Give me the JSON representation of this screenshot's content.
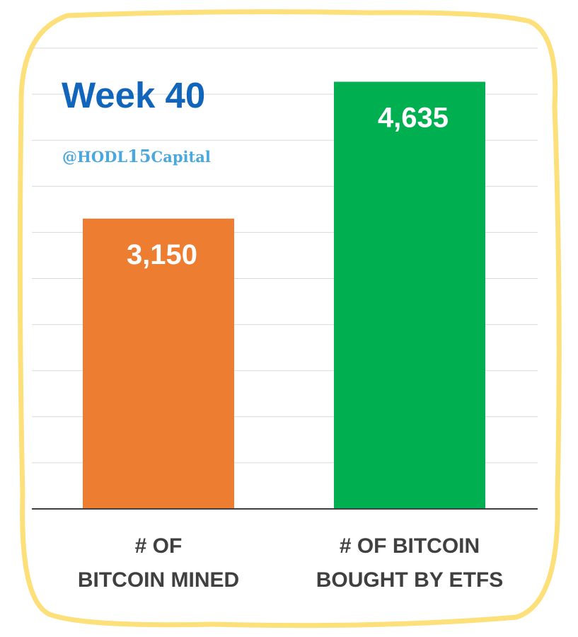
{
  "title": "Week 40",
  "handle": {
    "prefix": "@HODL",
    "number": "15",
    "suffix": "Capital"
  },
  "colors": {
    "title": "#1166bb",
    "handle": "#4aa8dc",
    "frame": "#fde07a",
    "grid": "#d9d9d9",
    "axis": "#404040",
    "category_text": "#404040",
    "value_text": "#ffffff"
  },
  "chart_data": {
    "type": "bar",
    "categories": [
      {
        "line1": "# OF",
        "line2": "BITCOIN MINED"
      },
      {
        "line1": "# OF BITCOIN",
        "line2": "BOUGHT BY ETFS"
      }
    ],
    "values": [
      3150,
      4635
    ],
    "value_labels": [
      "3,150",
      "4,635"
    ],
    "bar_colors": [
      "#ed7d31",
      "#00b050"
    ],
    "ylim": [
      0,
      5000
    ],
    "grid": true,
    "legend": "none"
  }
}
